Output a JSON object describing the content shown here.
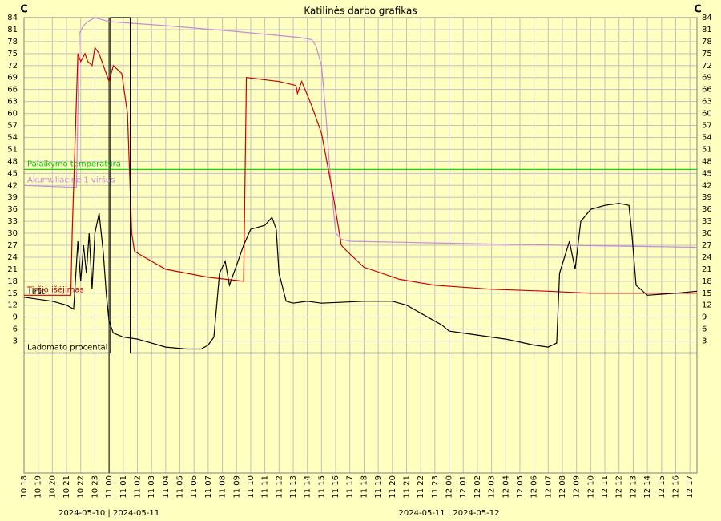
{
  "chart_data": {
    "type": "line",
    "title": "Katilinės darbo grafikas",
    "y_unit_left": "C",
    "y_unit_right": "C",
    "xlim": [
      0,
      47.5
    ],
    "ylim": [
      -30,
      84
    ],
    "yticks": [
      3,
      6,
      9,
      12,
      15,
      18,
      21,
      24,
      27,
      30,
      33,
      36,
      39,
      42,
      45,
      48,
      51,
      54,
      57,
      60,
      63,
      66,
      69,
      72,
      75,
      78,
      81,
      84
    ],
    "xticks": [
      {
        "value": 0,
        "label": "10 18"
      },
      {
        "value": 1,
        "label": "10 19"
      },
      {
        "value": 2,
        "label": "10 20"
      },
      {
        "value": 3,
        "label": "10 21"
      },
      {
        "value": 4,
        "label": "10 22"
      },
      {
        "value": 5,
        "label": "10 23"
      },
      {
        "value": 6,
        "label": "11 00"
      },
      {
        "value": 7,
        "label": "11 01"
      },
      {
        "value": 8,
        "label": "11 02"
      },
      {
        "value": 9,
        "label": "11 03"
      },
      {
        "value": 10,
        "label": "11 04"
      },
      {
        "value": 11,
        "label": "11 05"
      },
      {
        "value": 12,
        "label": "11 06"
      },
      {
        "value": 13,
        "label": "11 07"
      },
      {
        "value": 14,
        "label": "11 08"
      },
      {
        "value": 15,
        "label": "11 09"
      },
      {
        "value": 16,
        "label": "11 10"
      },
      {
        "value": 17,
        "label": "11 11"
      },
      {
        "value": 18,
        "label": "11 12"
      },
      {
        "value": 19,
        "label": "11 13"
      },
      {
        "value": 20,
        "label": "11 14"
      },
      {
        "value": 21,
        "label": "11 15"
      },
      {
        "value": 22,
        "label": "11 16"
      },
      {
        "value": 23,
        "label": "11 17"
      },
      {
        "value": 24,
        "label": "11 18"
      },
      {
        "value": 25,
        "label": "11 19"
      },
      {
        "value": 26,
        "label": "11 20"
      },
      {
        "value": 27,
        "label": "11 21"
      },
      {
        "value": 28,
        "label": "11 22"
      },
      {
        "value": 29,
        "label": "11 23"
      },
      {
        "value": 30,
        "label": "12 00"
      },
      {
        "value": 31,
        "label": "12 01"
      },
      {
        "value": 32,
        "label": "12 02"
      },
      {
        "value": 33,
        "label": "12 03"
      },
      {
        "value": 34,
        "label": "12 04"
      },
      {
        "value": 35,
        "label": "12 05"
      },
      {
        "value": 36,
        "label": "12 06"
      },
      {
        "value": 37,
        "label": "12 07"
      },
      {
        "value": 38,
        "label": "12 08"
      },
      {
        "value": 39,
        "label": "12 09"
      },
      {
        "value": 40,
        "label": "12 10"
      },
      {
        "value": 41,
        "label": "12 11"
      },
      {
        "value": 42,
        "label": "12 12"
      },
      {
        "value": 43,
        "label": "12 13"
      },
      {
        "value": 44,
        "label": "12 14"
      },
      {
        "value": 45,
        "label": "12 15"
      },
      {
        "value": 46,
        "label": "12 16"
      },
      {
        "value": 47,
        "label": "12 17"
      }
    ],
    "day_separators": [
      {
        "value": 6,
        "label": "2024-05-10 | 2024-05-11"
      },
      {
        "value": 30,
        "label": "2024-05-11 | 2024-05-12"
      }
    ],
    "grid": true,
    "series": [
      {
        "name": "Palaikymo temperatūra",
        "color": "#00cc00",
        "x": [
          0,
          47.5
        ],
        "values": [
          46,
          46
        ]
      },
      {
        "name": "Akumuliacinė 1 viršus",
        "color": "#cc88dd",
        "x": [
          0,
          3.7,
          3.9,
          4.2,
          4.5,
          5.0,
          6.0,
          10,
          15,
          19.5,
          20.3,
          20.6,
          21.0,
          21.3,
          21.6,
          22.0,
          22.4,
          23,
          30,
          38,
          47.5
        ],
        "values": [
          42,
          41.5,
          80,
          82,
          83,
          84,
          83,
          82,
          80.5,
          79,
          78.5,
          77,
          72,
          60,
          45,
          30,
          28.5,
          28,
          27.5,
          27,
          26.5
        ]
      },
      {
        "name": "Tiršio išėjimas",
        "color": "#cc0000",
        "x": [
          0,
          3.3,
          3.4,
          3.8,
          4.0,
          4.3,
          4.5,
          4.8,
          5.0,
          5.3,
          6.0,
          6.3,
          6.9,
          7.3,
          7.6,
          7.8,
          8.5,
          10,
          13,
          15.5,
          15.7,
          18,
          19.2,
          19.3,
          19.6,
          20.3,
          21.0,
          21.8,
          22.4,
          22.8,
          24,
          26.5,
          29,
          33,
          37,
          40,
          47.5
        ],
        "values": [
          14.5,
          14.5,
          30,
          75,
          73,
          75,
          73,
          72,
          76.5,
          75,
          68,
          72,
          70,
          60,
          30,
          25.5,
          24,
          21,
          19,
          18,
          69,
          68,
          67,
          65,
          68,
          62,
          55,
          40,
          27,
          25.5,
          21.5,
          18.5,
          17,
          16,
          15.5,
          15,
          15
        ]
      },
      {
        "name": "Ladomato procentai",
        "color": "#000000",
        "x": [
          0,
          6.1,
          6.1,
          7.5,
          7.5,
          47.5
        ],
        "values": [
          0,
          0,
          84,
          84,
          0,
          0
        ]
      },
      {
        "name": "Tiršt",
        "color": "#000000",
        "x": [
          0,
          2,
          3,
          3.5,
          3.8,
          4.0,
          4.2,
          4.4,
          4.6,
          4.8,
          5.0,
          5.3,
          5.6,
          5.8,
          6.0,
          6.3,
          7,
          8,
          9,
          10,
          11.5,
          12.5,
          13,
          13.4,
          13.8,
          14.2,
          14.5,
          15,
          15.5,
          16,
          17,
          17.5,
          17.8,
          18,
          18.5,
          19,
          20,
          21,
          24,
          26,
          27,
          28.5,
          29.5,
          30,
          31,
          34,
          36,
          37,
          37.6,
          37.8,
          38.5,
          38.9,
          39.3,
          40,
          41,
          42,
          42.7,
          42.9,
          43.2,
          44,
          46,
          47.5
        ],
        "values": [
          14,
          13,
          12,
          11,
          28,
          18,
          27,
          20,
          30,
          16,
          30,
          35,
          25,
          15,
          8,
          5,
          4,
          3.5,
          2.5,
          1.5,
          1,
          1,
          2,
          4,
          20,
          23,
          17,
          22,
          27,
          31,
          32,
          34,
          31,
          20,
          13,
          12.5,
          13,
          12.5,
          13,
          13,
          12,
          9,
          7,
          5.5,
          5,
          3.5,
          2,
          1.5,
          2.5,
          20,
          28,
          21,
          33,
          36,
          37,
          37.5,
          37,
          30,
          17,
          14.5,
          15,
          15.5
        ]
      }
    ]
  }
}
